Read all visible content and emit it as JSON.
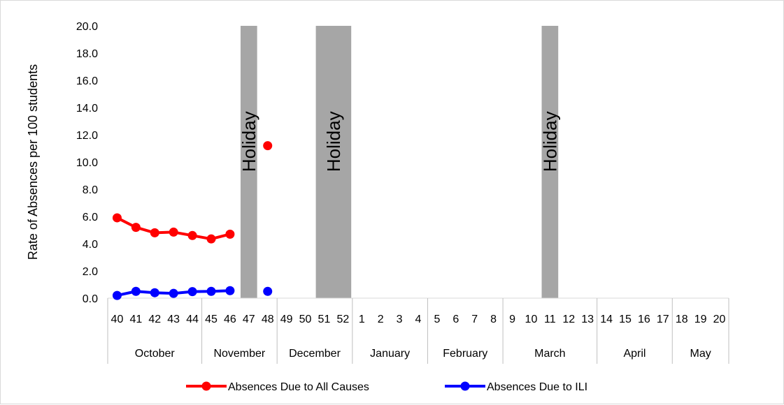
{
  "chart_data": {
    "type": "line",
    "title": "",
    "ylabel": "Rate of Absences per 100 students",
    "xlabel": "",
    "ylim": [
      0,
      20
    ],
    "yticks": [
      "0.0",
      "2.0",
      "4.0",
      "6.0",
      "8.0",
      "10.0",
      "12.0",
      "14.0",
      "16.0",
      "18.0",
      "20.0"
    ],
    "weeks": [
      "40",
      "41",
      "42",
      "43",
      "44",
      "45",
      "46",
      "47",
      "48",
      "49",
      "50",
      "51",
      "52",
      "1",
      "2",
      "3",
      "4",
      "5",
      "6",
      "7",
      "8",
      "9",
      "10",
      "11",
      "12",
      "13",
      "14",
      "15",
      "16",
      "17",
      "18",
      "19",
      "20"
    ],
    "months": [
      {
        "name": "October",
        "start": 0,
        "span": 5
      },
      {
        "name": "November",
        "start": 5,
        "span": 4
      },
      {
        "name": "December",
        "start": 9,
        "span": 4
      },
      {
        "name": "January",
        "start": 13,
        "span": 4
      },
      {
        "name": "February",
        "start": 17,
        "span": 4
      },
      {
        "name": "March",
        "start": 21,
        "span": 5
      },
      {
        "name": "April",
        "start": 26,
        "span": 4
      },
      {
        "name": "May",
        "start": 30,
        "span": 3
      }
    ],
    "holidays": [
      {
        "label": "Holiday",
        "weeks": [
          "47"
        ]
      },
      {
        "label": "Holiday",
        "weeks": [
          "51",
          "52"
        ]
      },
      {
        "label": "Holiday",
        "weeks": [
          "11"
        ]
      }
    ],
    "series": [
      {
        "name": "Absences Due to All Causes",
        "color": "#ff0000",
        "values": [
          5.9,
          5.2,
          4.8,
          4.85,
          4.6,
          4.35,
          4.7,
          null,
          11.2,
          null,
          null,
          null,
          null,
          null,
          null,
          null,
          null,
          null,
          null,
          null,
          null,
          null,
          null,
          null,
          null,
          null,
          null,
          null,
          null,
          null,
          null,
          null,
          null
        ]
      },
      {
        "name": "Absences Due to ILI",
        "color": "#0000ff",
        "values": [
          0.2,
          0.5,
          0.4,
          0.35,
          0.48,
          0.5,
          0.55,
          null,
          0.5,
          null,
          null,
          null,
          null,
          null,
          null,
          null,
          null,
          null,
          null,
          null,
          null,
          null,
          null,
          null,
          null,
          null,
          null,
          null,
          null,
          null,
          null,
          null,
          null
        ]
      }
    ],
    "holiday_color": "#a6a6a6",
    "grid": false,
    "legend_position": "bottom"
  }
}
